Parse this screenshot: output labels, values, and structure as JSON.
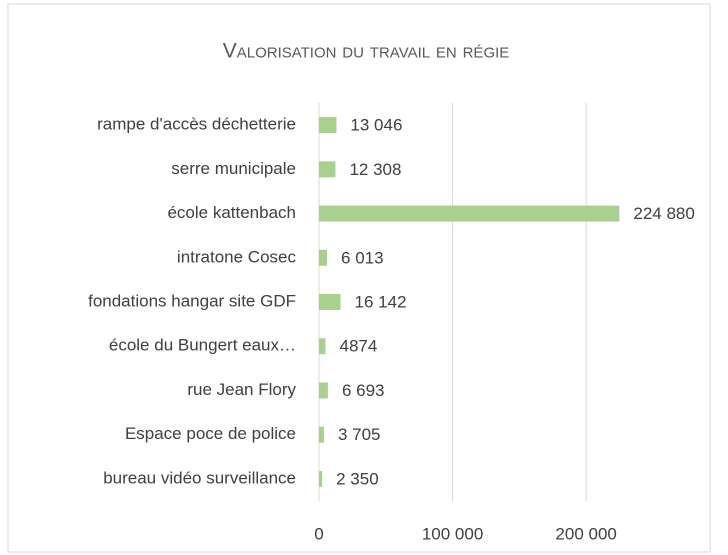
{
  "chart_data": {
    "type": "bar",
    "orientation": "horizontal",
    "title": "Valorisation du travail en régie",
    "categories": [
      "rampe d'accès déchetterie",
      "serre municipale",
      "école kattenbach",
      "intratone Cosec",
      "fondations hangar site GDF",
      "école du Bungert eaux…",
      "rue Jean Flory",
      "Espace poce de police",
      "bureau vidéo surveillance"
    ],
    "values": [
      13046,
      12308,
      224880,
      6013,
      16142,
      4874,
      6693,
      3705,
      2350
    ],
    "value_labels": [
      "13 046",
      "12 308",
      "224 880",
      "6 013",
      "16 142",
      "4874",
      "6 693",
      "3 705",
      "2 350"
    ],
    "color": "#a9d18e",
    "xlim": [
      0,
      280000
    ],
    "xticks": [
      0,
      {
        "value": 100000,
        "label": "100 000"
      },
      {
        "value": 200000,
        "label": "200 000"
      }
    ],
    "grid": true
  }
}
